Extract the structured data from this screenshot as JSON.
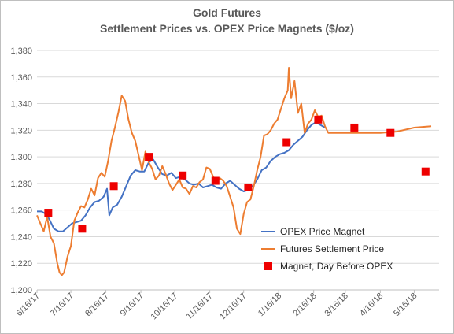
{
  "chart_data": {
    "type": "line",
    "title": "Gold Futures",
    "subtitle": "Settlement Prices vs. OPEX Price Magnets ($/oz)",
    "xlabel": "",
    "ylabel": "",
    "ylim": [
      1200,
      1380
    ],
    "y_ticks": [
      "1,200",
      "1,220",
      "1,240",
      "1,260",
      "1,280",
      "1,300",
      "1,320",
      "1,340",
      "1,360",
      "1,380"
    ],
    "x_ticks": [
      "6/16/17",
      "7/16/17",
      "8/16/17",
      "9/16/17",
      "10/16/17",
      "11/16/17",
      "12/16/17",
      "1/16/18",
      "2/16/18",
      "3/16/18",
      "4/16/18",
      "5/16/18"
    ],
    "grid": true,
    "legend_position": "bottom-right",
    "series": [
      {
        "name": "OPEX Price Magnet",
        "color": "#4472C4",
        "kind": "line",
        "x": [
          "2017-06-16",
          "2017-06-20",
          "2017-06-24",
          "2017-06-27",
          "2017-07-01",
          "2017-07-05",
          "2017-07-09",
          "2017-07-13",
          "2017-07-17",
          "2017-07-21",
          "2017-07-25",
          "2017-07-29",
          "2017-08-02",
          "2017-08-06",
          "2017-08-10",
          "2017-08-14",
          "2017-08-17",
          "2017-08-19",
          "2017-08-22",
          "2017-08-26",
          "2017-08-30",
          "2017-09-03",
          "2017-09-07",
          "2017-09-11",
          "2017-09-15",
          "2017-09-19",
          "2017-09-23",
          "2017-09-27",
          "2017-10-01",
          "2017-10-05",
          "2017-10-09",
          "2017-10-13",
          "2017-10-17",
          "2017-10-21",
          "2017-10-25",
          "2017-10-29",
          "2017-11-02",
          "2017-11-06",
          "2017-11-10",
          "2017-11-14",
          "2017-11-18",
          "2017-11-22",
          "2017-11-26",
          "2017-11-30",
          "2017-12-04",
          "2017-12-08",
          "2017-12-12",
          "2017-12-16",
          "2017-12-20",
          "2017-12-24",
          "2017-12-28",
          "2018-01-01",
          "2018-01-05",
          "2018-01-09",
          "2018-01-13",
          "2018-01-17",
          "2018-01-21",
          "2018-01-25",
          "2018-01-29",
          "2018-02-02",
          "2018-02-06",
          "2018-02-10",
          "2018-02-14",
          "2018-02-18",
          "2018-02-22",
          "2018-02-26"
        ],
        "values": [
          1259,
          1259,
          1257,
          1253,
          1246,
          1244,
          1244,
          1247,
          1250,
          1251,
          1252,
          1256,
          1262,
          1266,
          1267,
          1270,
          1276,
          1256,
          1262,
          1264,
          1270,
          1278,
          1286,
          1290,
          1289,
          1289,
          1296,
          1298,
          1292,
          1287,
          1286,
          1288,
          1284,
          1285,
          1283,
          1280,
          1279,
          1280,
          1277,
          1278,
          1279,
          1277,
          1276,
          1280,
          1282,
          1279,
          1276,
          1274,
          1275,
          1278,
          1283,
          1290,
          1292,
          1297,
          1300,
          1302,
          1303,
          1305,
          1309,
          1312,
          1315,
          1320,
          1324,
          1326,
          1324,
          1322
        ]
      },
      {
        "name": "Futures Settlement Price",
        "color": "#ED7D31",
        "kind": "line",
        "x": [
          "2017-06-16",
          "2017-06-19",
          "2017-06-22",
          "2017-06-25",
          "2017-06-28",
          "2017-07-01",
          "2017-07-04",
          "2017-07-06",
          "2017-07-08",
          "2017-07-10",
          "2017-07-13",
          "2017-07-16",
          "2017-07-19",
          "2017-07-22",
          "2017-07-25",
          "2017-07-28",
          "2017-07-31",
          "2017-08-03",
          "2017-08-06",
          "2017-08-09",
          "2017-08-12",
          "2017-08-15",
          "2017-08-18",
          "2017-08-21",
          "2017-08-24",
          "2017-08-27",
          "2017-08-30",
          "2017-09-02",
          "2017-09-05",
          "2017-09-08",
          "2017-09-11",
          "2017-09-14",
          "2017-09-17",
          "2017-09-20",
          "2017-09-23",
          "2017-09-26",
          "2017-09-29",
          "2017-10-02",
          "2017-10-05",
          "2017-10-08",
          "2017-10-11",
          "2017-10-14",
          "2017-10-17",
          "2017-10-20",
          "2017-10-23",
          "2017-10-26",
          "2017-10-29",
          "2017-11-01",
          "2017-11-04",
          "2017-11-07",
          "2017-11-10",
          "2017-11-13",
          "2017-11-16",
          "2017-11-19",
          "2017-11-22",
          "2017-11-25",
          "2017-11-28",
          "2017-12-01",
          "2017-12-04",
          "2017-12-07",
          "2017-12-10",
          "2017-12-13",
          "2017-12-16",
          "2017-12-19",
          "2017-12-22",
          "2017-12-25",
          "2017-12-28",
          "2017-12-31",
          "2018-01-03",
          "2018-01-06",
          "2018-01-09",
          "2018-01-12",
          "2018-01-15",
          "2018-01-18",
          "2018-01-21",
          "2018-01-24",
          "2018-01-25",
          "2018-01-27",
          "2018-01-30",
          "2018-02-02",
          "2018-02-05",
          "2018-02-08",
          "2018-02-11",
          "2018-02-14",
          "2018-02-17",
          "2018-02-20",
          "2018-02-23",
          "2018-02-26",
          "2018-03-01",
          "2018-03-05",
          "2018-03-10",
          "2018-03-16",
          "2018-03-31",
          "2018-04-16",
          "2018-05-01",
          "2018-05-16",
          "2018-05-31"
        ],
        "values": [
          1256,
          1250,
          1244,
          1255,
          1240,
          1235,
          1220,
          1213,
          1211,
          1213,
          1225,
          1233,
          1252,
          1258,
          1263,
          1262,
          1268,
          1276,
          1271,
          1284,
          1288,
          1285,
          1297,
          1312,
          1322,
          1333,
          1346,
          1342,
          1328,
          1318,
          1312,
          1301,
          1290,
          1304,
          1296,
          1291,
          1283,
          1286,
          1293,
          1287,
          1280,
          1275,
          1279,
          1283,
          1277,
          1276,
          1272,
          1278,
          1277,
          1281,
          1283,
          1292,
          1291,
          1285,
          1282,
          1284,
          1282,
          1278,
          1270,
          1262,
          1246,
          1242,
          1257,
          1266,
          1268,
          1278,
          1290,
          1300,
          1316,
          1317,
          1320,
          1325,
          1328,
          1336,
          1344,
          1350,
          1367,
          1344,
          1357,
          1333,
          1340,
          1318,
          1325,
          1328,
          1335,
          1330,
          1331,
          1323,
          1318,
          1318,
          1318,
          1318,
          1318,
          1318,
          1319,
          1322,
          1323
        ]
      },
      {
        "name": "Magnet, Day Before OPEX",
        "color": "#EE0000",
        "kind": "markers",
        "x": [
          "2017-06-26",
          "2017-07-26",
          "2017-08-23",
          "2017-09-23",
          "2017-10-23",
          "2017-11-21",
          "2017-12-20",
          "2018-01-23",
          "2018-02-20",
          "2018-03-24",
          "2018-04-25",
          "2018-05-26"
        ],
        "values": [
          1258,
          1246,
          1278,
          1300,
          1286,
          1282,
          1277,
          1311,
          1328,
          1322,
          1318,
          1289
        ]
      }
    ]
  }
}
